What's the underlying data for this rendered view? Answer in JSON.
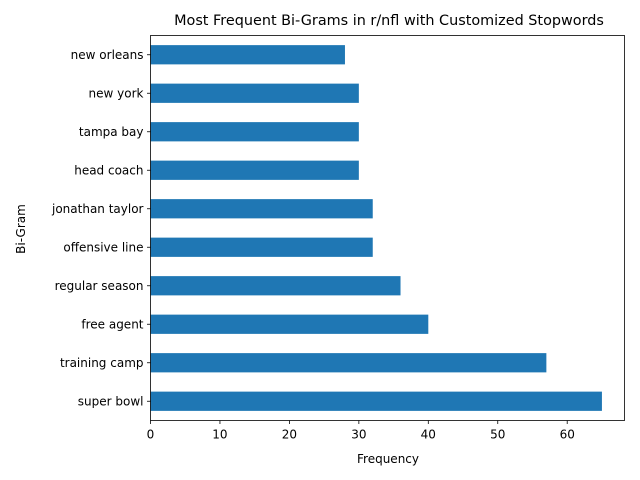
{
  "chart_data": {
    "type": "bar",
    "orientation": "horizontal",
    "title": "Most Frequent Bi-Grams in r/nfl with Customized Stopwords",
    "xlabel": "Frequency",
    "ylabel": "Bi-Gram",
    "categories": [
      "super bowl",
      "training camp",
      "free agent",
      "regular season",
      "offensive line",
      "jonathan taylor",
      "head coach",
      "tampa bay",
      "new york",
      "new orleans"
    ],
    "values": [
      65,
      57,
      40,
      36,
      32,
      32,
      30,
      30,
      30,
      28
    ],
    "xlim": [
      0,
      68.25
    ],
    "xticks": [
      "0",
      "10",
      "20",
      "30",
      "40",
      "50",
      "60"
    ],
    "grid": false,
    "legend": "none",
    "bar_color": "#1f77b4"
  }
}
